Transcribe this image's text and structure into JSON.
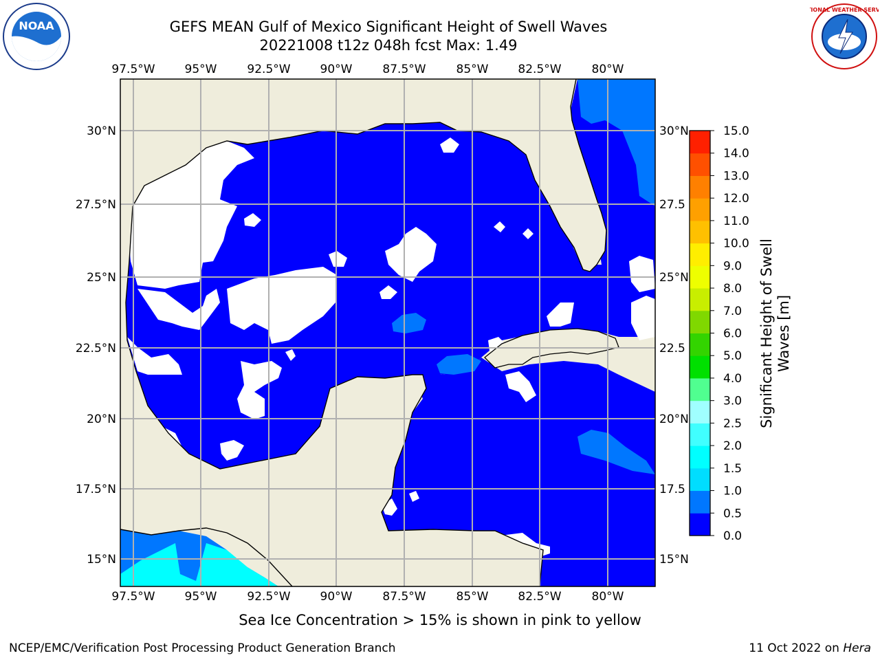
{
  "title": {
    "line1": "GEFS MEAN Gulf of Mexico Significant Height of Swell Waves",
    "line2": "20221008 t12z 048h fcst   Max: 1.49"
  },
  "map": {
    "lon_labels": [
      "97.5°W",
      "95°W",
      "92.5°W",
      "90°W",
      "87.5°W",
      "85°W",
      "82.5°W",
      "80°W"
    ],
    "lat_labels": [
      "30°N",
      "27.5°N",
      "25°N",
      "22.5°N",
      "20°N",
      "17.5°N",
      "15°N"
    ],
    "lat_labels_right": [
      "30°N",
      "27.5",
      "25°N",
      "22.5",
      "20°N",
      "17.5",
      "15°N"
    ],
    "colors": {
      "land": "#efeddc",
      "ocean_low": "#0000ff",
      "ocean_mid": "#0077ff",
      "ocean_high": "#00ffff",
      "grid": "#b0b0b0",
      "nodata": "#ffffff"
    }
  },
  "colorbar": {
    "label_line1": "Significant Height of Swell",
    "label_line2": "Waves [m]",
    "ticks": [
      "0.0",
      "0.5",
      "1.0",
      "1.5",
      "2.0",
      "2.5",
      "3.0",
      "4.0",
      "5.0",
      "6.0",
      "7.0",
      "8.0",
      "9.0",
      "10.0",
      "11.0",
      "12.0",
      "13.0",
      "14.0",
      "15.0"
    ],
    "colors": [
      "#0000ff",
      "#0077ff",
      "#00ddff",
      "#00ffff",
      "#40ffff",
      "#a0ffff",
      "#50ff90",
      "#00e000",
      "#33d400",
      "#80d800",
      "#c8ee00",
      "#eeff00",
      "#ffee00",
      "#ffc000",
      "#ffa000",
      "#ff8000",
      "#ff5000",
      "#ff2000"
    ]
  },
  "footer": {
    "note": "Sea Ice Concentration > 15% is shown in pink to yellow",
    "credit": "NCEP/EMC/Verification Post Processing Product Generation Branch",
    "date_prefix": "11 Oct 2022 on ",
    "date_host": "Hera"
  },
  "logos": {
    "noaa_text": "NOAA",
    "nws_text": "NATIONAL WEATHER SERVICE"
  }
}
